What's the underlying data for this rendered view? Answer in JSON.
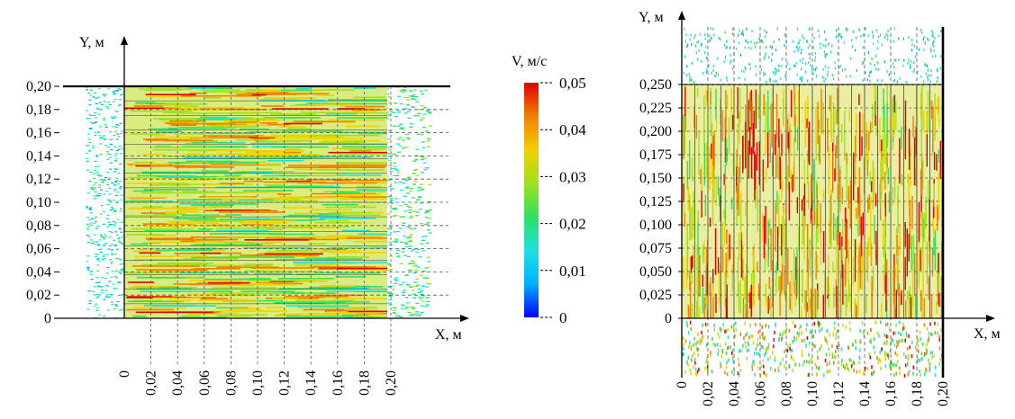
{
  "chart_data": [
    {
      "type": "heatmap",
      "xlabel": "X, м",
      "ylabel": "Y, м",
      "xlim": [
        0,
        0.2
      ],
      "ylim": [
        0,
        0.2
      ],
      "xticks": [
        "0",
        "0,02",
        "0,04",
        "0,06",
        "0,08",
        "0,10",
        "0,12",
        "0,14",
        "0,16",
        "0,18",
        "0,20"
      ],
      "yticks": [
        "0",
        "0,02",
        "0,04",
        "0,06",
        "0,08",
        "0,10",
        "0,12",
        "0,14",
        "0,16",
        "0,18",
        "0,20"
      ],
      "channels": 16,
      "orientation": "horizontal",
      "grid": true
    },
    {
      "type": "heatmap",
      "xlabel": "X, м",
      "ylabel": "Y, м",
      "xlim": [
        0,
        0.2
      ],
      "ylim": [
        0,
        0.25
      ],
      "xticks": [
        "0",
        "0,02",
        "0,04",
        "0,06",
        "0,08",
        "0,10",
        "0,12",
        "0,14",
        "0,16",
        "0,18",
        "0,20"
      ],
      "yticks": [
        "0",
        "0,025",
        "0,050",
        "0,075",
        "0,100",
        "0,125",
        "0,150",
        "0,175",
        "0,200",
        "0,225",
        "0,250"
      ],
      "channels": 20,
      "orientation": "vertical",
      "grid": true
    }
  ],
  "colorbar": {
    "title": "V, м/с",
    "ticks": [
      "0",
      "0,01",
      "0,02",
      "0,03",
      "0,04",
      "0,05"
    ],
    "range": [
      0,
      0.05
    ],
    "colors": [
      "#0000ff",
      "#00b0ff",
      "#20e0e0",
      "#30e060",
      "#a0e020",
      "#f0d000",
      "#f08000",
      "#e00000"
    ]
  }
}
